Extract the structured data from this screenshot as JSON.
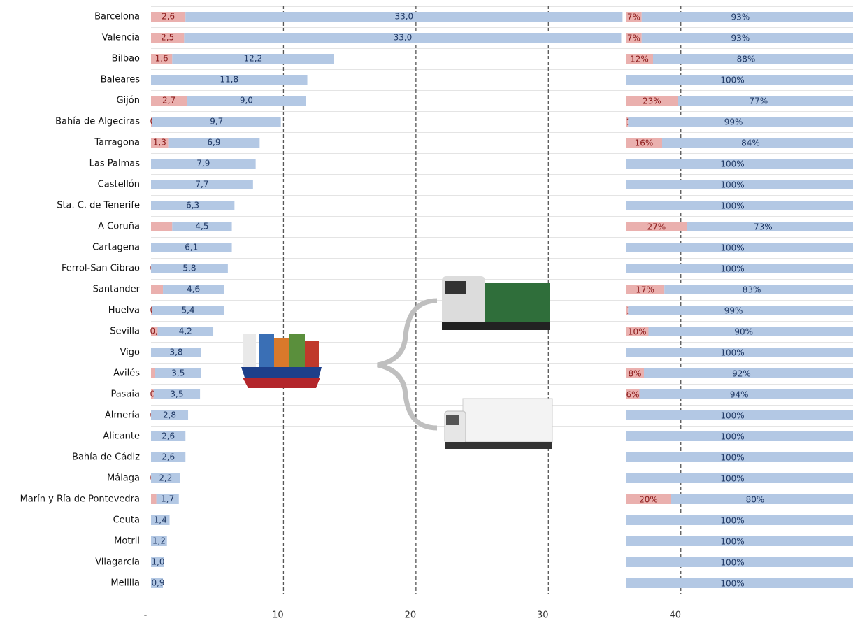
{
  "chart_data": [
    {
      "type": "bar",
      "stacked": true,
      "categories": [
        "Barcelona",
        "Valencia",
        "Bilbao",
        "Baleares",
        "Gijón",
        "Bahía de Algeciras",
        "Tarragona",
        "Las Palmas",
        "Castellón",
        "Sta. C. de Tenerife",
        "A Coruña",
        "Cartagena",
        "Ferrol-San Cibrao",
        "Santander",
        "Huelva",
        "Sevilla",
        "Vigo",
        "Avilés",
        "Pasaia",
        "Almería",
        "Alicante",
        "Bahía de Cádiz",
        "Málaga",
        "Marín y Ría de Pontevedra",
        "Ceuta",
        "Motril",
        "Vilagarcía",
        "Melilla"
      ],
      "series": [
        {
          "color": "#eab0ae",
          "values": [
            2.6,
            2.5,
            1.6,
            null,
            2.7,
            0.1,
            1.3,
            null,
            null,
            null,
            1.6,
            null,
            0.0,
            0.9,
            0.1,
            0.5,
            null,
            0.3,
            0.2,
            0.0,
            null,
            null,
            0.0,
            0.4,
            null,
            null,
            null,
            null
          ],
          "value_labels": [
            "2,6",
            "2,5",
            "1,6",
            null,
            "2,7",
            "0,1",
            "1,3",
            null,
            null,
            null,
            null,
            null,
            "0,0",
            null,
            "0,1",
            "0,5",
            null,
            null,
            "0,2",
            "0,0",
            null,
            null,
            "0,0",
            null,
            null,
            null,
            null,
            null
          ]
        },
        {
          "color": "#b3c8e4",
          "values": [
            33.0,
            33.0,
            12.2,
            11.8,
            9.0,
            9.7,
            6.9,
            7.9,
            7.7,
            6.3,
            4.5,
            6.1,
            5.8,
            4.6,
            5.4,
            4.2,
            3.8,
            3.5,
            3.5,
            2.8,
            2.6,
            2.6,
            2.2,
            1.7,
            1.4,
            1.2,
            1.0,
            0.9
          ],
          "value_labels": [
            "33,0",
            "33,0",
            "12,2",
            "11,8",
            "9,0",
            "9,7",
            "6,9",
            "7,9",
            "7,7",
            "6,3",
            "4,5",
            "6,1",
            "5,8",
            "4,6",
            "5,4",
            "4,2",
            "3,8",
            "3,5",
            "3,5",
            "2,8",
            "2,6",
            "2,6",
            "2,2",
            "1,7",
            "1,4",
            "1,2",
            "1,0",
            "0,9"
          ]
        }
      ],
      "xlim": [
        0,
        53
      ],
      "xticks": [
        {
          "value": 0,
          "label": "-"
        },
        10,
        20,
        30,
        40
      ],
      "grid": true
    },
    {
      "type": "bar",
      "stacked": true,
      "percent": true,
      "series": [
        {
          "color": "#eab0ae",
          "values": [
            7,
            7,
            12,
            0,
            23,
            1,
            16,
            0,
            0,
            0,
            27,
            0,
            0,
            17,
            1,
            10,
            0,
            8,
            6,
            0,
            0,
            0,
            0,
            20,
            0,
            0,
            0,
            0
          ],
          "value_labels": [
            "7%",
            "7%",
            "12%",
            "0%",
            "23%",
            "1%",
            "16%",
            "0%",
            "0%",
            "0%",
            "27%",
            "0%",
            "0%",
            "17%",
            "1%",
            "10%",
            "0%",
            "8%",
            "6%",
            "0%",
            "0%",
            "0%",
            "0%",
            "20%",
            "0%",
            "0%",
            "0%",
            "0%"
          ]
        },
        {
          "color": "#b3c8e4",
          "values": [
            93,
            93,
            88,
            100,
            77,
            99,
            84,
            100,
            100,
            100,
            73,
            100,
            100,
            83,
            99,
            90,
            100,
            92,
            94,
            100,
            100,
            100,
            100,
            80,
            100,
            100,
            100,
            100
          ],
          "value_labels": [
            "93%",
            "93%",
            "88%",
            "100%",
            "77%",
            "99%",
            "84%",
            "100%",
            "100%",
            "100%",
            "73%",
            "100%",
            "100%",
            "83%",
            "99%",
            "90%",
            "100%",
            "92%",
            "94%",
            "100%",
            "100%",
            "100%",
            "100%",
            "80%",
            "100%",
            "100%",
            "100%",
            "100%"
          ]
        }
      ]
    }
  ]
}
